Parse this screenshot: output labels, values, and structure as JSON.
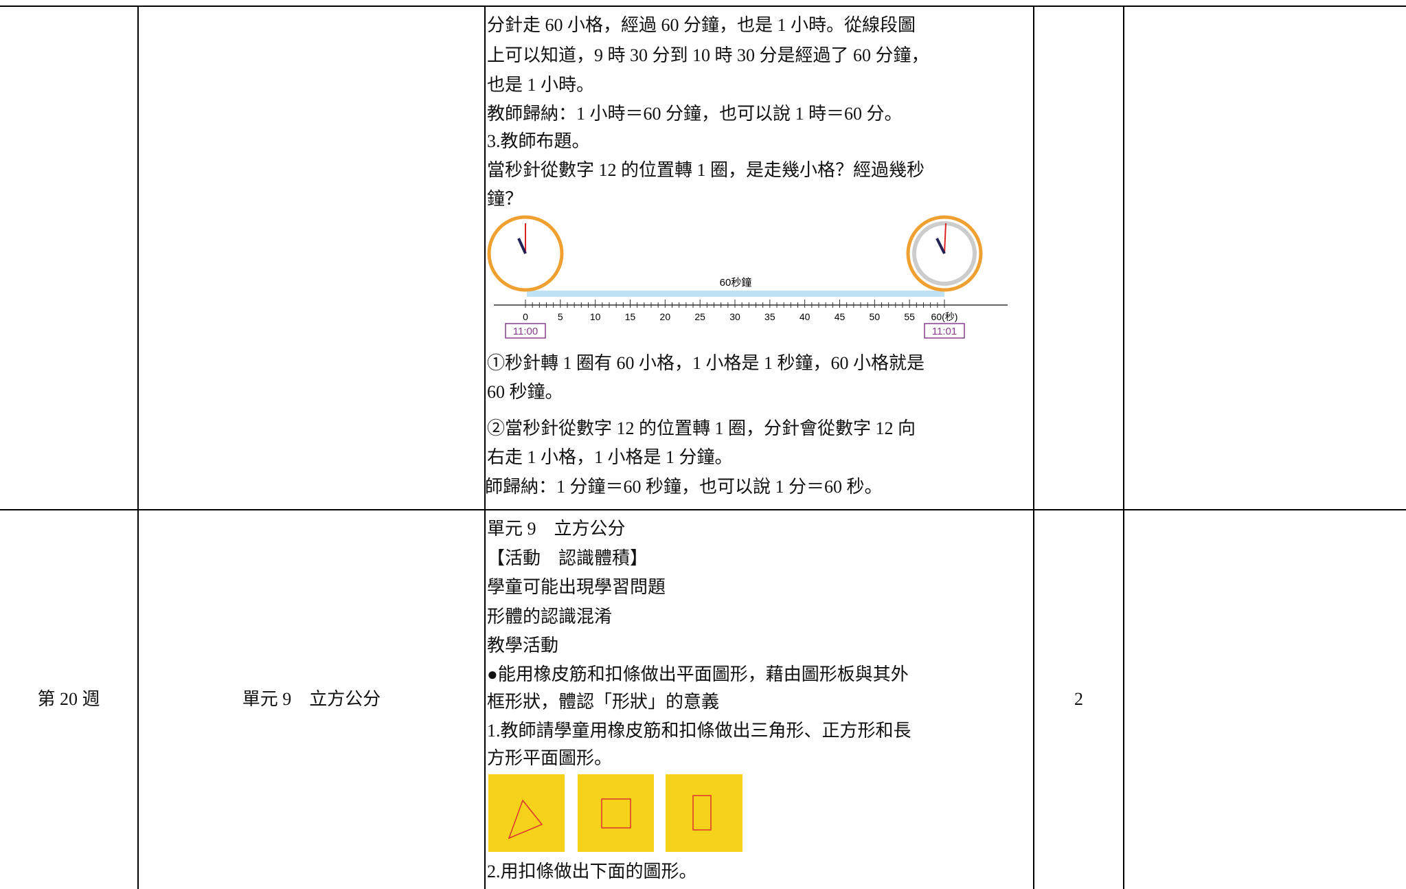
{
  "table": {
    "rows": [
      {
        "cells": [
          "",
          "",
          {
            "lines_a": [
              "分針走 60 小格，經過 60 分鐘，也是 1 小時。從線段圖",
              "上可以知道，9 時 30 分到 10 時 30 分是經過了 60 分鐘，",
              "也是 1 小時。",
              "教師歸納：1 小時＝60 分鐘，也可以說 1 時＝60 分。",
              "3.教師布題。",
              "當秒針從數字 12 的位置轉 1 圈，是走幾小格？經過幾秒",
              "鐘？"
            ],
            "figure": {
              "caption": "60秒鐘",
              "ticks": [
                "0",
                "5",
                "10",
                "15",
                "20",
                "25",
                "30",
                "35",
                "40",
                "45",
                "50",
                "55",
                "60(秒)"
              ],
              "start": "11:00",
              "end": "11:01"
            },
            "lines_b": [
              "①秒針轉 1 圈有 60 小格，1 小格是 1 秒鐘，60 小格就是",
              "60 秒鐘。",
              "②當秒針從數字 12 的位置轉 1 圈，分針會從數字 12 向",
              "右走 1 小格，1 小格是 1 分鐘。",
              "師歸納：1 分鐘＝60 秒鐘，也可以說 1 分＝60 秒。"
            ]
          },
          "",
          ""
        ]
      },
      {
        "cells": [
          "第 20 週",
          "單元 9　立方公分",
          {
            "lines_a": [
              "單元 9　立方公分",
              "【活動　認識體積】",
              "學童可能出現學習問題",
              "形體的認識混淆",
              "教學活動",
              "●能用橡皮筋和扣條做出平面圖形，藉由圖形板與其外",
              "框形狀，體認「形狀」的意義",
              "1.教師請學童用橡皮筋和扣條做出三角形、正方形和長",
              "方形平面圖形。"
            ],
            "lines_b": [
              "2.用扣條做出下面的圖形。"
            ]
          },
          "2",
          ""
        ]
      }
    ]
  }
}
